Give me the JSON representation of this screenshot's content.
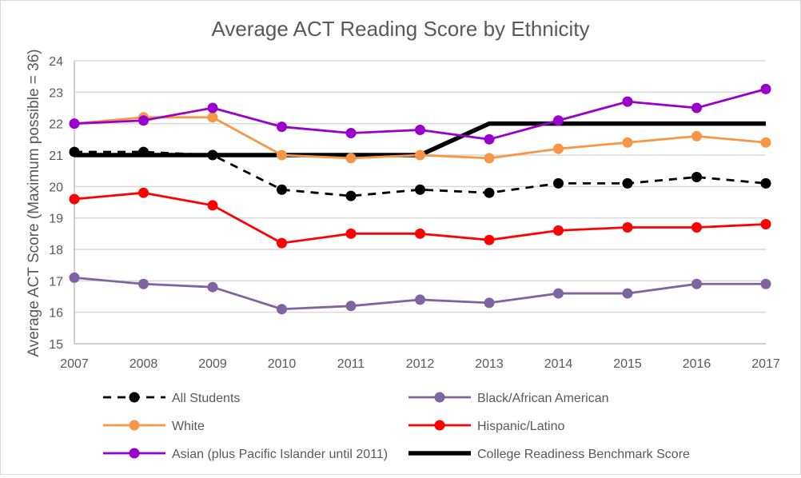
{
  "chart_data": {
    "type": "line",
    "title": "Average ACT Reading Score by Ethnicity",
    "xlabel": "",
    "ylabel": "Average ACT Score (Maximum possible = 36)",
    "ylim": [
      15,
      24
    ],
    "yticks": [
      "15",
      "16",
      "17",
      "18",
      "19",
      "20",
      "21",
      "22",
      "23",
      "24"
    ],
    "categories": [
      "2007",
      "2008",
      "2009",
      "2010",
      "2011",
      "2012",
      "2013",
      "2014",
      "2015",
      "2016",
      "2017"
    ],
    "grid": "horizontal",
    "legend_position": "bottom",
    "series": [
      {
        "name": "All Students",
        "color": "#000000",
        "dash": true,
        "markers": true,
        "values": [
          21.1,
          21.1,
          21.0,
          19.9,
          19.7,
          19.9,
          19.8,
          20.1,
          20.1,
          20.3,
          20.1
        ]
      },
      {
        "name": "Black/African American",
        "color": "#8064a2",
        "dash": false,
        "markers": true,
        "values": [
          17.1,
          16.9,
          16.8,
          16.1,
          16.2,
          16.4,
          16.3,
          16.6,
          16.6,
          16.9,
          16.9
        ]
      },
      {
        "name": "White",
        "color": "#f79646",
        "dash": false,
        "markers": true,
        "values": [
          22.0,
          22.2,
          22.2,
          21.0,
          20.9,
          21.0,
          20.9,
          21.2,
          21.4,
          21.6,
          21.4
        ]
      },
      {
        "name": "Hispanic/Latino",
        "color": "#ff0000",
        "dash": false,
        "markers": true,
        "values": [
          19.6,
          19.8,
          19.4,
          18.2,
          18.5,
          18.5,
          18.3,
          18.6,
          18.7,
          18.7,
          18.8
        ]
      },
      {
        "name": "Asian (plus Pacific Islander until 2011)",
        "color": "#9900cc",
        "dash": false,
        "markers": true,
        "values": [
          22.0,
          22.1,
          22.5,
          21.9,
          21.7,
          21.8,
          21.5,
          22.1,
          22.7,
          22.5,
          23.1
        ]
      },
      {
        "name": "College Readiness Benchmark Score",
        "color": "#000000",
        "dash": false,
        "markers": false,
        "thick": true,
        "values": [
          21,
          21,
          21,
          21,
          21,
          21,
          22,
          22,
          22,
          22,
          22
        ]
      }
    ]
  }
}
